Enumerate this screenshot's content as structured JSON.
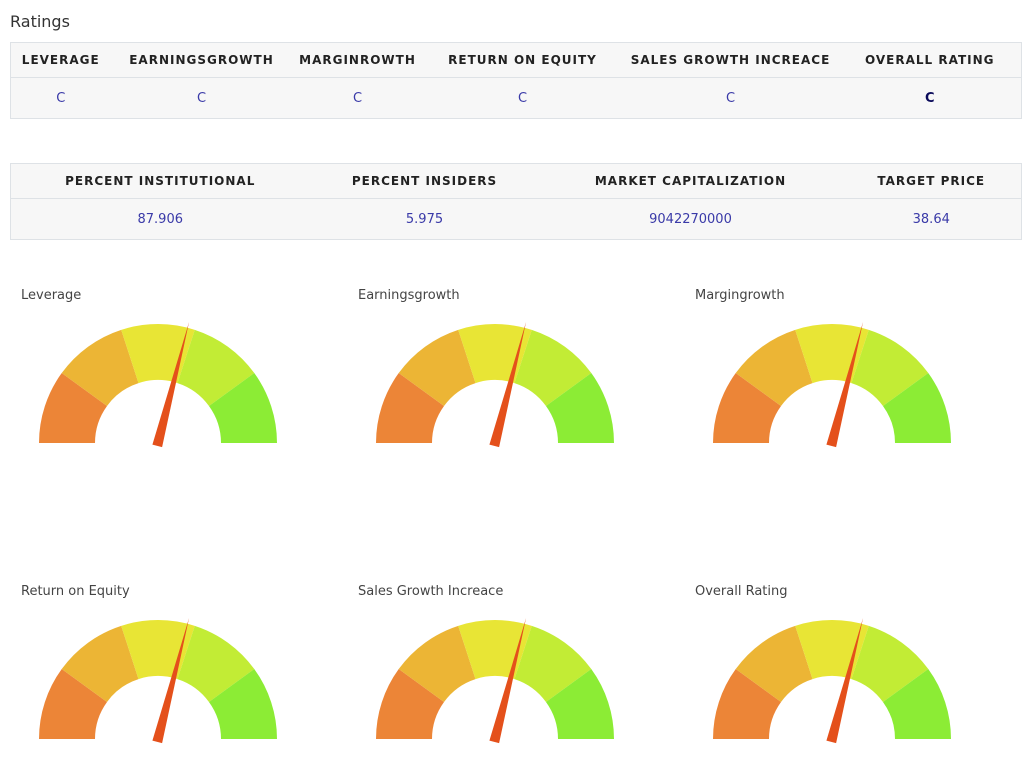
{
  "page": {
    "title": "Ratings"
  },
  "ratings_table": {
    "headers": [
      "LEVERAGE",
      "EARNINGSGROWTH",
      "MARGINROWTH",
      "RETURN ON EQUITY",
      "SALES GROWTH INCREACE",
      "OVERALL RATING"
    ],
    "values": [
      "C",
      "C",
      "C",
      "C",
      "C",
      "C"
    ]
  },
  "stats_table": {
    "headers": [
      "PERCENT INSTITUTIONAL",
      "PERCENT INSIDERS",
      "MARKET CAPITALIZATION",
      "TARGET PRICE"
    ],
    "values": [
      "87.906",
      "5.975",
      "9042270000",
      "38.64"
    ]
  },
  "gauge_colors": [
    "#ec8537",
    "#ecb535",
    "#e8e535",
    "#c2ec35",
    "#8cec35"
  ],
  "needle_color": "#e4501b",
  "gauges": [
    {
      "label": "Leverage",
      "rating": "C",
      "needle_fraction": 0.58
    },
    {
      "label": "Earningsgrowth",
      "rating": "C",
      "needle_fraction": 0.58
    },
    {
      "label": "Margingrowth",
      "rating": "C",
      "needle_fraction": 0.58
    },
    {
      "label": "Return on Equity",
      "rating": "C",
      "needle_fraction": 0.58
    },
    {
      "label": "Sales Growth Increace",
      "rating": "C",
      "needle_fraction": 0.58
    },
    {
      "label": "Overall Rating",
      "rating": "C",
      "needle_fraction": 0.58
    }
  ]
}
